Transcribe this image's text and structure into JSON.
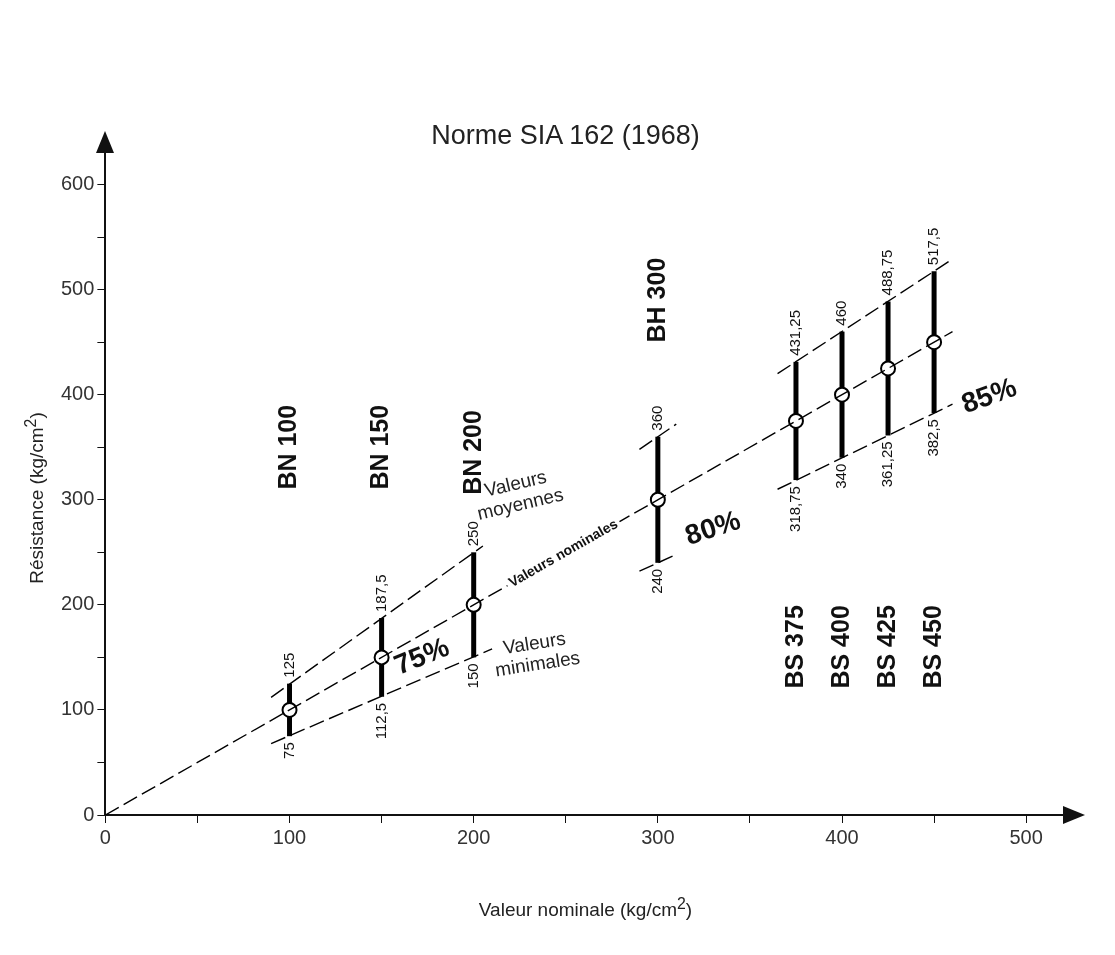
{
  "chart_data": {
    "type": "line",
    "title": "Norme SIA 162 (1968)",
    "xlabel": "Valeur nominale (kg/cm$^{2}$)",
    "ylabel": "Résistance (kg/cm$^{2}$)",
    "xlim": [
      0,
      520
    ],
    "ylim": [
      0,
      630
    ],
    "xticks": [
      0,
      {
        "value": 50,
        "label": null
      },
      100,
      {
        "value": 150,
        "label": null
      },
      200,
      {
        "value": 250,
        "label": null
      },
      300,
      {
        "value": 350,
        "label": null
      },
      400,
      {
        "value": 450,
        "label": null
      },
      500
    ],
    "yticks": [
      0,
      {
        "value": 50,
        "label": null
      },
      100,
      {
        "value": 150,
        "label": null
      },
      200,
      {
        "value": 250,
        "label": null
      },
      300,
      {
        "value": 350,
        "label": null
      },
      400,
      {
        "value": 450,
        "label": null
      },
      500,
      {
        "value": 550,
        "label": null
      },
      600
    ],
    "grid": false,
    "legend": false,
    "line_style": "dashed",
    "series": [
      {
        "name": "Valeurs moyennes",
        "color": "#000000",
        "x": [
          90,
          205,
          250,
          290,
          310,
          340,
          365,
          460
        ],
        "values": [
          112,
          256,
          null,
          348,
          372,
          null,
          420,
          529
        ]
      },
      {
        "name": "Valeurs nominales",
        "color": "#000000",
        "x": [
          0,
          460
        ],
        "values": [
          0,
          460
        ]
      },
      {
        "name": "Valeurs minimales",
        "color": "#000000",
        "x": [
          90,
          210,
          250,
          290,
          310,
          340,
          365,
          460
        ],
        "values": [
          68,
          158,
          null,
          232,
          248,
          null,
          310,
          391
        ]
      },
      {
        "type": "scatter",
        "marker": "circle",
        "color": "#000000",
        "x": [
          100,
          150,
          200,
          300,
          375,
          400,
          425,
          450
        ],
        "values": [
          100,
          150,
          200,
          300,
          375,
          400,
          425,
          450
        ],
        "errors": [
          25,
          37.5,
          50,
          60,
          56.25,
          60,
          63.75,
          67.5
        ]
      }
    ],
    "annotations": [
      {
        "text": "125",
        "x": 100,
        "y": 125
      },
      {
        "text": "75",
        "x": 100,
        "y": 75
      },
      {
        "text": "187,5",
        "x": 150,
        "y": 187.5
      },
      {
        "text": "112,5",
        "x": 150,
        "y": 112.5
      },
      {
        "text": "250",
        "x": 200,
        "y": 250
      },
      {
        "text": "150",
        "x": 200,
        "y": 150
      },
      {
        "text": "360",
        "x": 300,
        "y": 360
      },
      {
        "text": "240",
        "x": 300,
        "y": 240
      },
      {
        "text": "431,25",
        "x": 375,
        "y": 431.25
      },
      {
        "text": "318,75",
        "x": 375,
        "y": 318.75
      },
      {
        "text": "460",
        "x": 400,
        "y": 460
      },
      {
        "text": "340",
        "x": 400,
        "y": 340
      },
      {
        "text": "488,75",
        "x": 425,
        "y": 488.75
      },
      {
        "text": "361,25",
        "x": 425,
        "y": 361.25
      },
      {
        "text": "517,5",
        "x": 450,
        "y": 517.5
      },
      {
        "text": "382,5",
        "x": 450,
        "y": 382.5
      },
      "BN 100",
      "BN 150",
      "BN 200",
      "BH 300",
      "BS 375",
      "BS 400",
      "BS 425",
      "BS 450",
      "75%",
      "80%",
      "85%"
    ]
  }
}
